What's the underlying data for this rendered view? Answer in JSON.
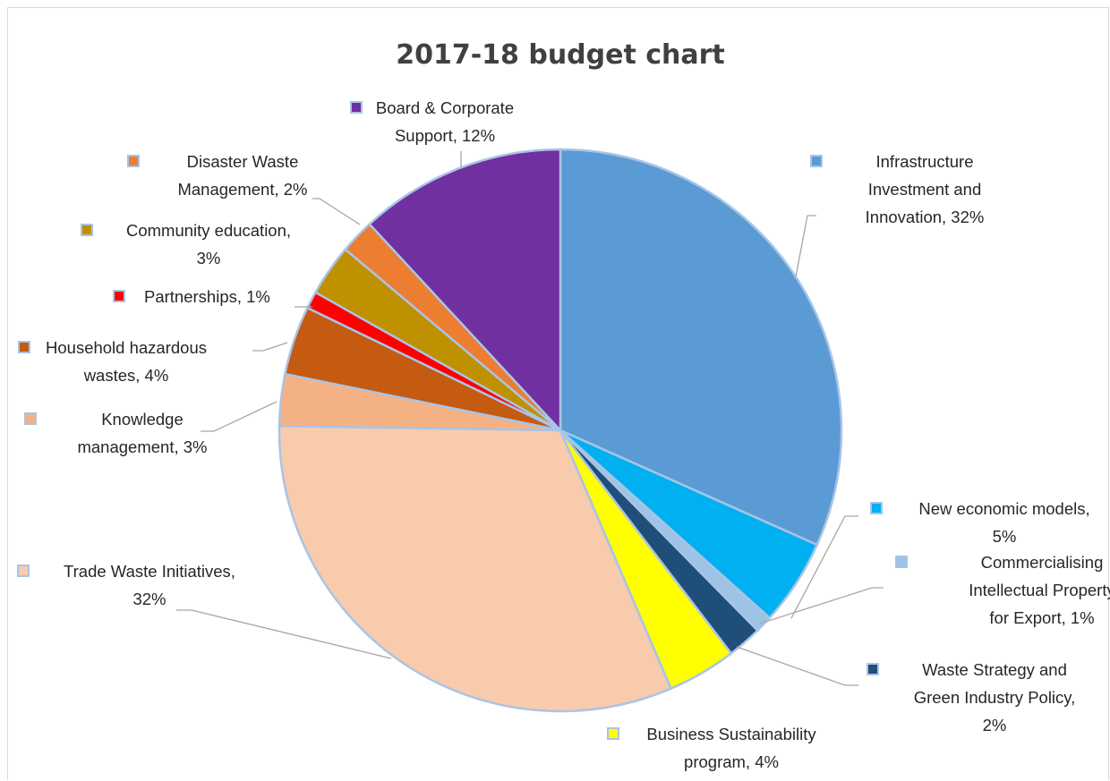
{
  "chart_data": {
    "type": "pie",
    "title": "2017-18 budget chart",
    "slices": [
      {
        "label_lines": [
          "Infrastructure",
          "Investment and",
          "Innovation, 32%"
        ],
        "value": 32,
        "color": "#5B9BD5"
      },
      {
        "label_lines": [
          "New economic models,",
          "5%"
        ],
        "value": 5,
        "color": "#00B0F0"
      },
      {
        "label_lines": [
          "Commercialising",
          "Intellectual Property",
          "for Export, 1%"
        ],
        "value": 1,
        "color": "#9DC3E6"
      },
      {
        "label_lines": [
          "Waste Strategy and",
          "Green Industry Policy,",
          "2%"
        ],
        "value": 2,
        "color": "#1F4E79"
      },
      {
        "label_lines": [
          "Business Sustainability",
          "program, 4%"
        ],
        "value": 4,
        "color": "#FFFF00"
      },
      {
        "label_lines": [
          "Trade Waste Initiatives,",
          "32%"
        ],
        "value": 32,
        "color": "#F8CBAD"
      },
      {
        "label_lines": [
          "Knowledge",
          "management, 3%"
        ],
        "value": 3,
        "color": "#F4B183"
      },
      {
        "label_lines": [
          "Household hazardous",
          "wastes, 4%"
        ],
        "value": 4,
        "color": "#C55A11"
      },
      {
        "label_lines": [
          "Partnerships, 1%"
        ],
        "value": 1,
        "color": "#FF0000"
      },
      {
        "label_lines": [
          "Community education,",
          "3%"
        ],
        "value": 3,
        "color": "#BF9000"
      },
      {
        "label_lines": [
          "Disaster Waste",
          "Management, 2%"
        ],
        "value": 2,
        "color": "#ED7D31"
      },
      {
        "label_lines": [
          "Board & Corporate",
          "Support, 12%"
        ],
        "value": 12,
        "color": "#7030A0"
      }
    ]
  }
}
